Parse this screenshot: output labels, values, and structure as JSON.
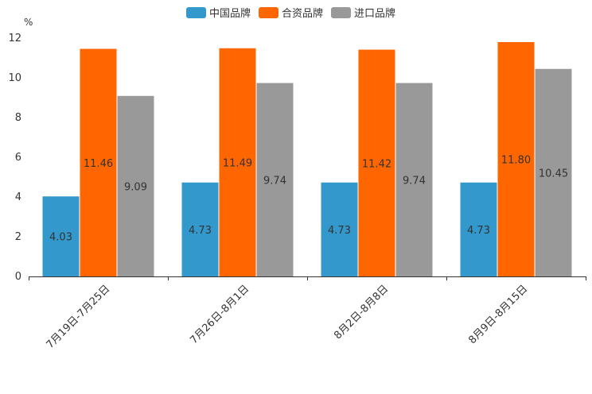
{
  "chart_data": {
    "type": "bar",
    "ylabel": "%",
    "ylim": [
      0,
      12
    ],
    "yticks": [
      0,
      2,
      4,
      6,
      8,
      10,
      12
    ],
    "categories": [
      "7月19日-7月25日",
      "7月26日-8月1日",
      "8月2日-8月8日",
      "8月9日-8月15日"
    ],
    "series": [
      {
        "name": "中国品牌",
        "color": "#3399cc",
        "values": [
          4.03,
          4.73,
          4.73,
          4.73
        ]
      },
      {
        "name": "合资品牌",
        "color": "#ff6600",
        "values": [
          11.46,
          11.49,
          11.42,
          11.8
        ]
      },
      {
        "name": "进口品牌",
        "color": "#999999",
        "values": [
          9.09,
          9.74,
          9.74,
          10.45
        ]
      }
    ]
  }
}
